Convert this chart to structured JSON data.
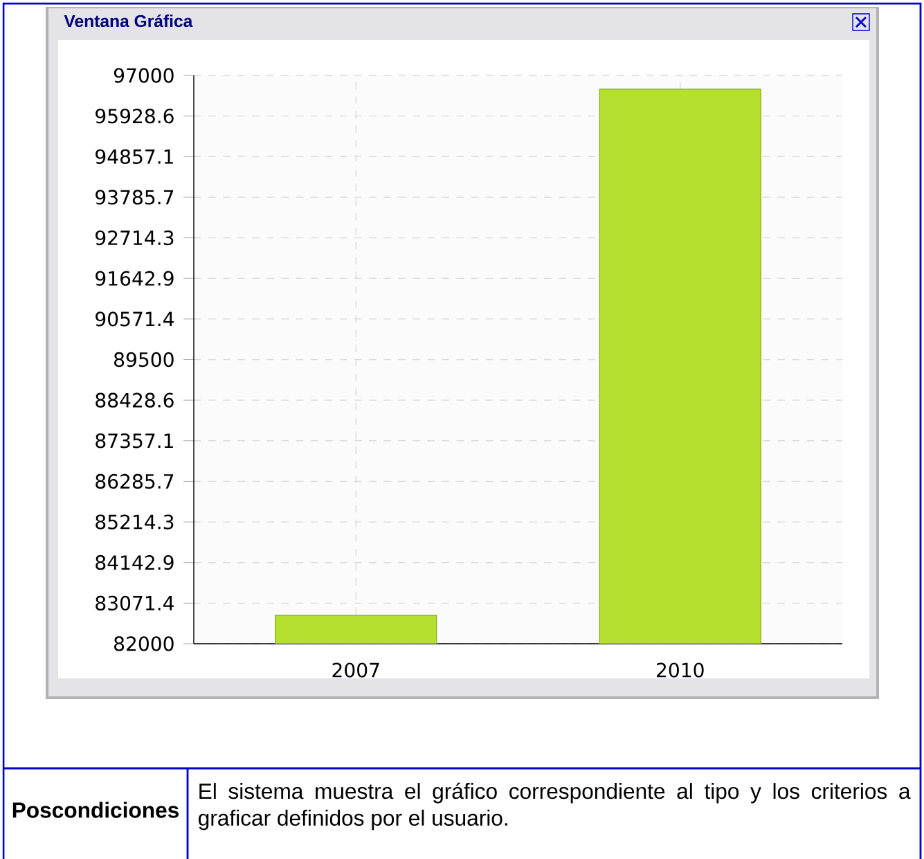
{
  "chart_data": {
    "type": "bar",
    "title": "Ventana Gráfica",
    "categories": [
      "2007",
      "2010"
    ],
    "values": [
      82750,
      96640
    ],
    "color": "#b5e02f",
    "ylim": [
      82000,
      97000
    ],
    "yticks": [
      82000,
      83071.4,
      84142.9,
      85214.3,
      86285.7,
      87357.1,
      88428.6,
      89500,
      90571.4,
      91642.9,
      92714.3,
      93785.7,
      94857.1,
      95928.6,
      97000
    ],
    "grid": true,
    "annotations": [
      "**Poscondiciones**",
      "El sistema muestra el gráfico correspondiente al tipo y los criterios a graficar definidos por el usuario."
    ]
  }
}
